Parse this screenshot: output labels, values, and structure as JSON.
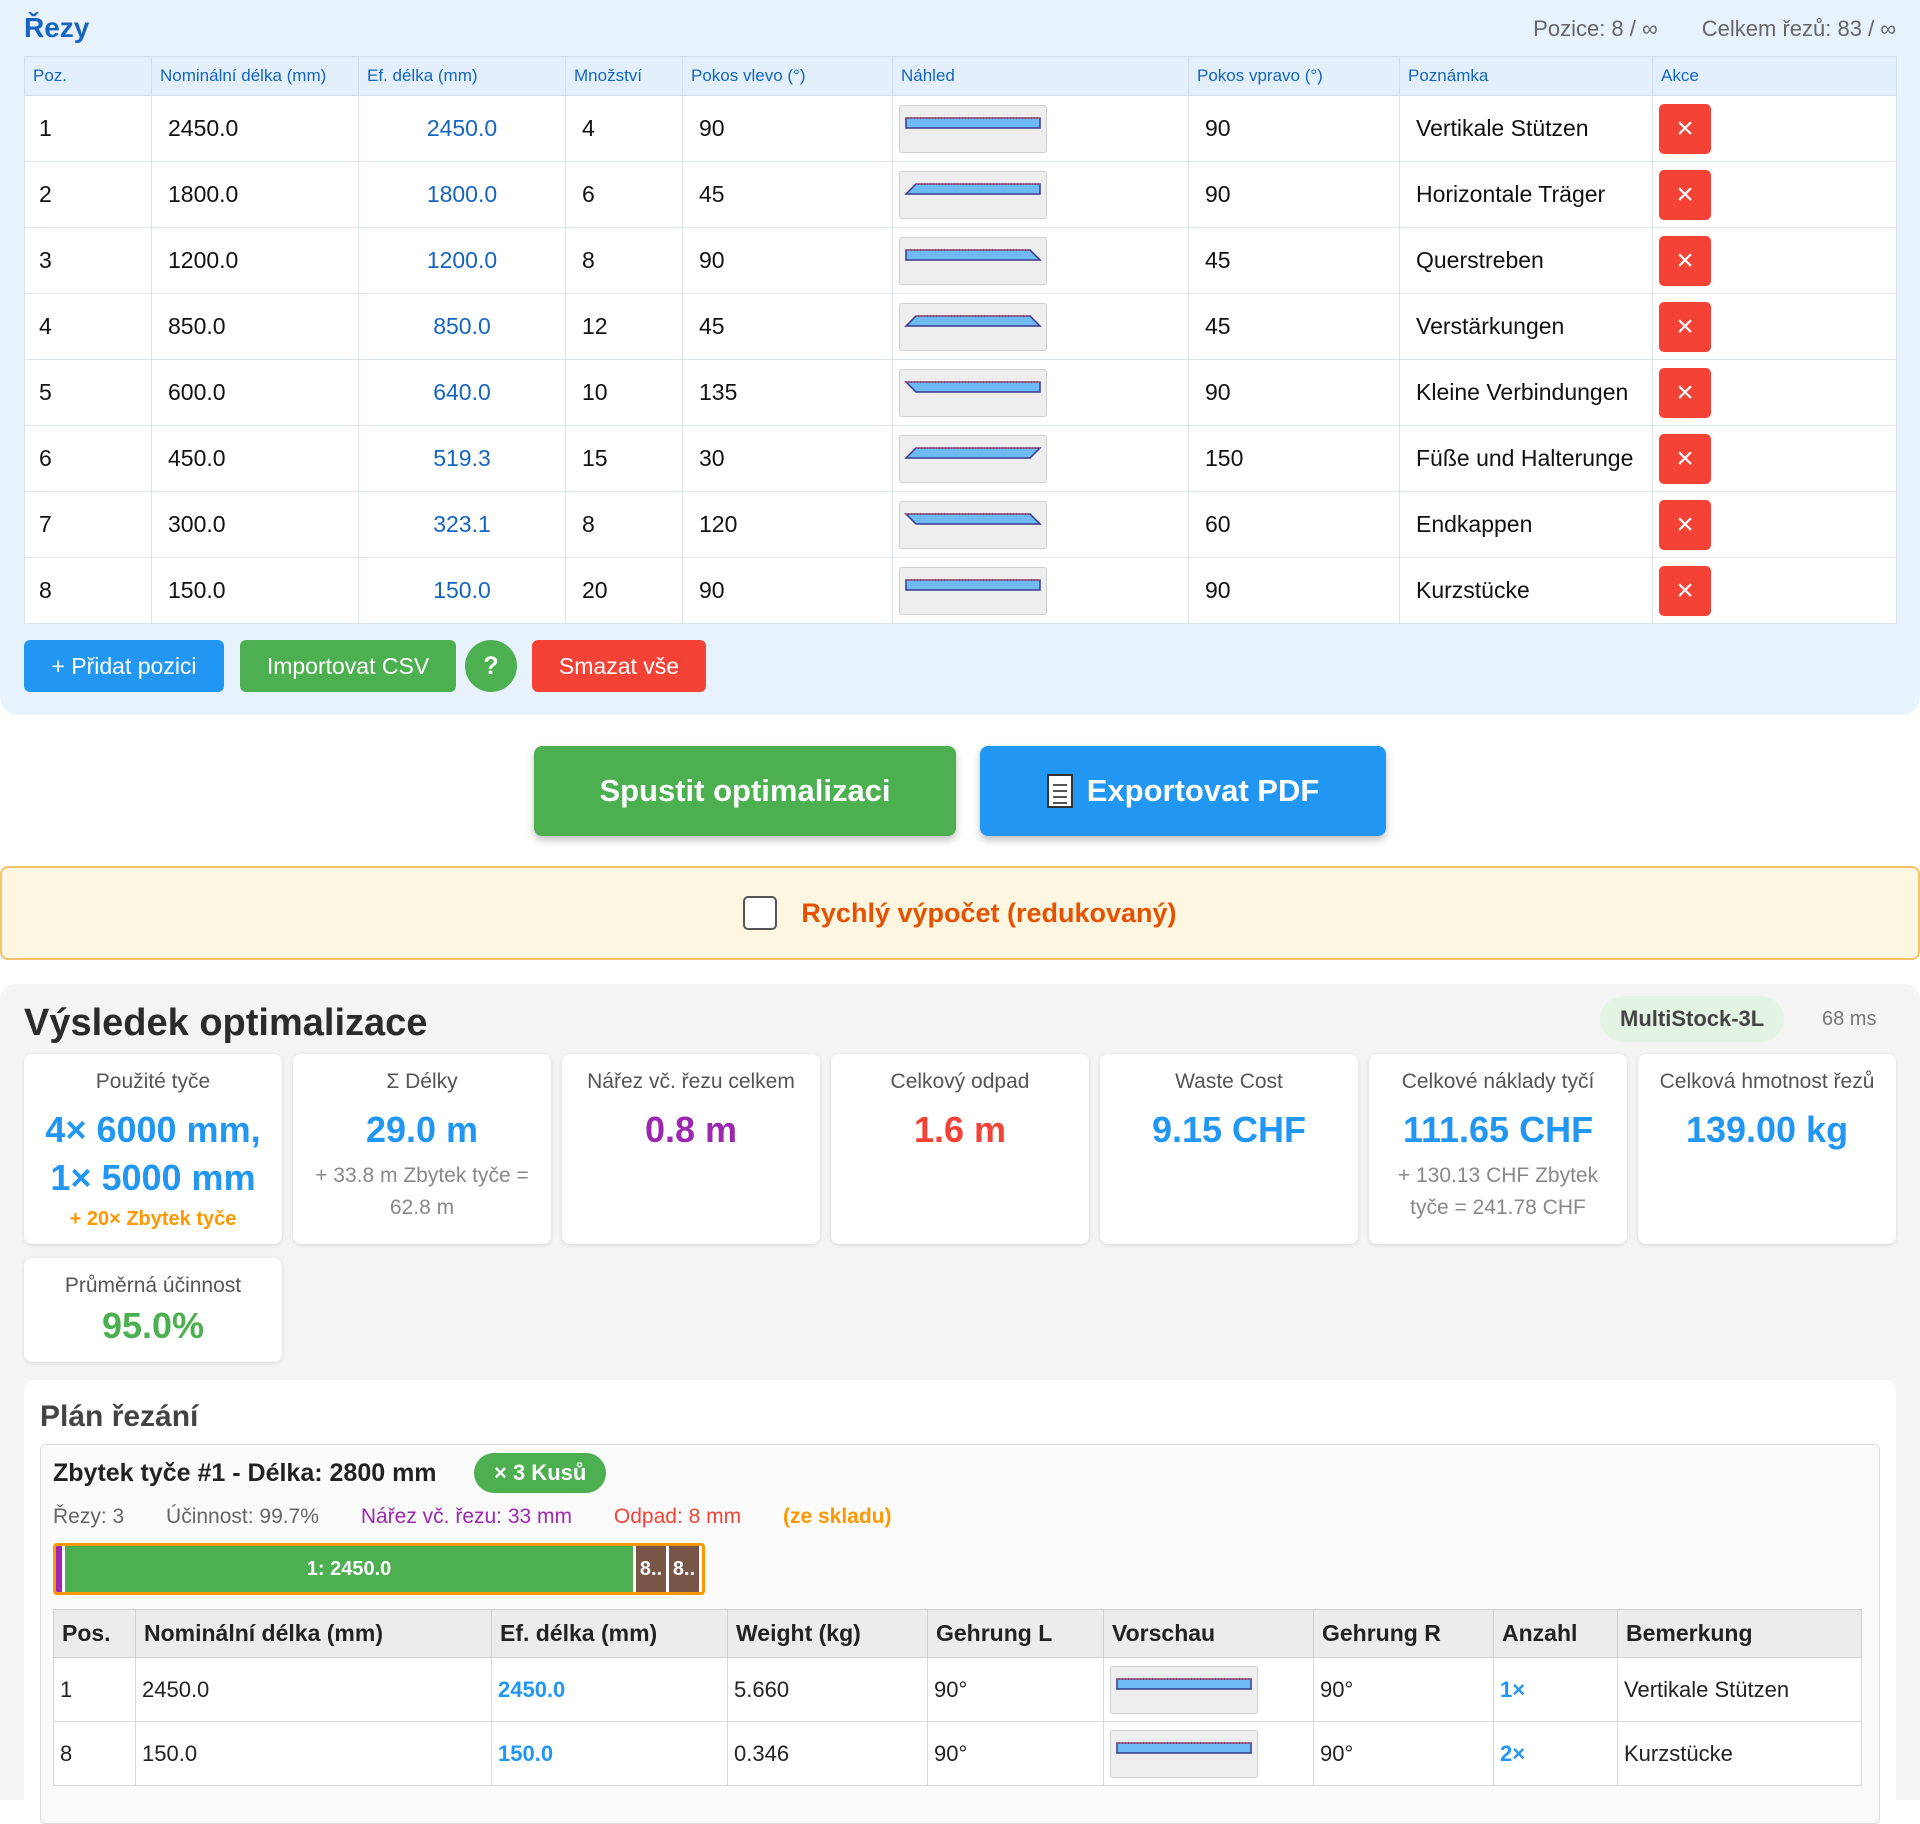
{
  "cuts": {
    "title": "Řezy",
    "positions_stat": "Pozice: 8 / ∞",
    "total_stat": "Celkem řezů: 83 / ∞",
    "columns": [
      "Poz.",
      "Nominální délka (mm)",
      "Ef. délka (mm)",
      "Množství",
      "Pokos vlevo (°)",
      "Náhled",
      "Pokos vpravo (°)",
      "Poznámka",
      "Akce"
    ],
    "rows": [
      {
        "pos": "1",
        "nominal": "2450.0",
        "effective": "2450.0",
        "qty": "4",
        "miter_left": "90",
        "miter_right": "90",
        "note": "Vertikale Stützen"
      },
      {
        "pos": "2",
        "nominal": "1800.0",
        "effective": "1800.0",
        "qty": "6",
        "miter_left": "45",
        "miter_right": "90",
        "note": "Horizontale Träger"
      },
      {
        "pos": "3",
        "nominal": "1200.0",
        "effective": "1200.0",
        "qty": "8",
        "miter_left": "90",
        "miter_right": "45",
        "note": "Querstreben"
      },
      {
        "pos": "4",
        "nominal": "850.0",
        "effective": "850.0",
        "qty": "12",
        "miter_left": "45",
        "miter_right": "45",
        "note": "Verstärkungen"
      },
      {
        "pos": "5",
        "nominal": "600.0",
        "effective": "640.0",
        "qty": "10",
        "miter_left": "135",
        "miter_right": "90",
        "note": "Kleine Verbindungen"
      },
      {
        "pos": "6",
        "nominal": "450.0",
        "effective": "519.3",
        "qty": "15",
        "miter_left": "30",
        "miter_right": "150",
        "note": "Füße und Halterunge"
      },
      {
        "pos": "7",
        "nominal": "300.0",
        "effective": "323.1",
        "qty": "8",
        "miter_left": "120",
        "miter_right": "60",
        "note": "Endkappen"
      },
      {
        "pos": "8",
        "nominal": "150.0",
        "effective": "150.0",
        "qty": "20",
        "miter_left": "90",
        "miter_right": "90",
        "note": "Kurzstücke"
      }
    ],
    "delete_icon": "×",
    "buttons": {
      "add": "+ Přidat pozici",
      "import": "Importovat CSV",
      "help": "?",
      "clear": "Smazat vše"
    }
  },
  "actions": {
    "run": "Spustit optimalizaci",
    "pdf": "Exportovat PDF"
  },
  "quick_calc": {
    "label": "Rychlý výpočet (redukovaný)",
    "checked": false
  },
  "results": {
    "title": "Výsledek optimalizace",
    "algorithm": "MultiStock-3L",
    "time": "68 ms",
    "cards": {
      "bars": {
        "label": "Použité tyče",
        "value_line1": "4× 6000 mm,",
        "value_line2": "1× 5000 mm",
        "sub": "+ 20× Zbytek tyče"
      },
      "lengths": {
        "label": "Σ Délky",
        "value": "29.0 m",
        "sub": "+ 33.8 m Zbytek tyče = 62.8 m"
      },
      "kerf": {
        "label": "Nářez vč. řezu celkem",
        "value": "0.8 m"
      },
      "waste": {
        "label": "Celkový odpad",
        "value": "1.6 m"
      },
      "waste_cost": {
        "label": "Waste Cost",
        "value": "9.15 CHF"
      },
      "cost": {
        "label": "Celkové náklady tyčí",
        "value": "111.65 CHF",
        "sub": "+ 130.13 CHF Zbytek tyče = 241.78 CHF"
      },
      "weight": {
        "label": "Celková hmotnost řezů",
        "value": "139.00 kg"
      },
      "efficiency": {
        "label": "Průměrná účinnost",
        "value": "95.0%"
      }
    },
    "plan": {
      "title": "Plán řezání",
      "bar": {
        "heading": "Zbytek tyče #1 - Délka: 2800 mm",
        "count": "× 3 Kusů",
        "cuts": "Řezy: 3",
        "efficiency": "Účinnost: 99.7%",
        "kerf": "Nářez vč. řezu: 33 mm",
        "waste": "Odpad: 8 mm",
        "source": "(ze skladu)",
        "segments": [
          "1: 2450.0",
          "8..",
          "8.."
        ],
        "columns": [
          "Pos.",
          "Nominální délka (mm)",
          "Ef. délka (mm)",
          "Weight (kg)",
          "Gehrung L",
          "Vorschau",
          "Gehrung R",
          "Anzahl",
          "Bemerkung"
        ],
        "rows": [
          {
            "pos": "1",
            "nominal": "2450.0",
            "effective": "2450.0",
            "weight": "5.660",
            "gl": "90°",
            "gr": "90°",
            "count": "1×",
            "note": "Vertikale Stützen"
          },
          {
            "pos": "8",
            "nominal": "150.0",
            "effective": "150.0",
            "weight": "0.346",
            "gl": "90°",
            "gr": "90°",
            "count": "2×",
            "note": "Kurzstücke"
          }
        ]
      }
    }
  },
  "colors": {
    "primary": "#2196f3",
    "success": "#4caf50",
    "danger": "#f44336",
    "warning": "#ff9800",
    "kerf": "#9c27b0"
  }
}
